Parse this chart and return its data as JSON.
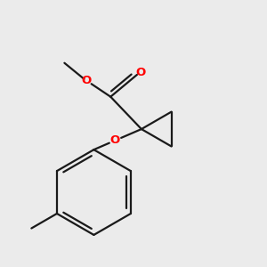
{
  "bg_color": "#ebebeb",
  "bond_color": "#1a1a1a",
  "oxygen_color": "#ff0000",
  "bond_width": 1.6,
  "dbo": 0.012,
  "fig_size": [
    3.0,
    3.0
  ],
  "dpi": 100,
  "xlim": [
    0.05,
    0.95
  ],
  "ylim": [
    0.08,
    0.95
  ]
}
